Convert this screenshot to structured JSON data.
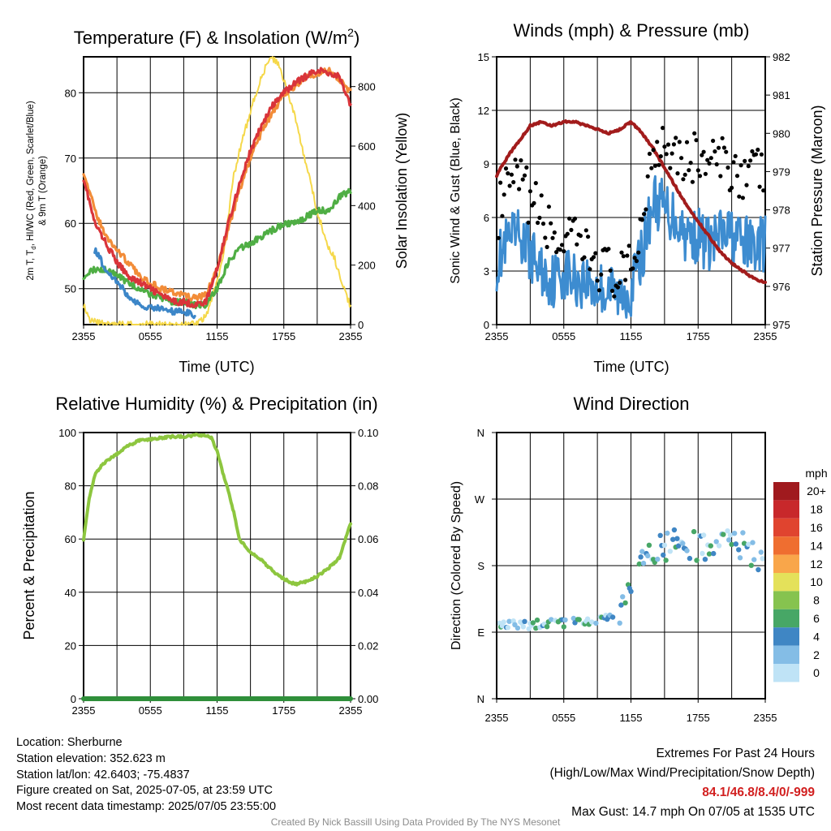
{
  "chart_data": [
    {
      "type": "line",
      "title": "Temperature (F) & Insolation (W/m",
      "title_sup": "2",
      "title_end": ")",
      "xlabel": "Time (UTC)",
      "ylabel_line1": "2m T, T",
      "ylabel_sub": "d",
      "ylabel_line1_end": ", HI/WC (Red, Green, Scarlet/Blue)",
      "ylabel_line2": "& 9m T (Orange)",
      "ylabel_right": "Solar Insolation (Yellow)",
      "x_ticks": [
        "2355",
        "0555",
        "1155",
        "1755",
        "2355"
      ],
      "x_range_hours": [
        0,
        24
      ],
      "ylim": [
        44.5,
        85.5
      ],
      "y_ticks": [
        50,
        60,
        70,
        80
      ],
      "y2lim": [
        0,
        900
      ],
      "y2_ticks": [
        0,
        200,
        400,
        600,
        800
      ],
      "grid": true,
      "series": [
        {
          "color": "#d9343a",
          "x": [
            0,
            1,
            2,
            3,
            4,
            5,
            6,
            7,
            8,
            9,
            10,
            11,
            12,
            13,
            14,
            15,
            16,
            17,
            18,
            19,
            20,
            21,
            22,
            23,
            24
          ],
          "values": [
            67,
            60,
            57,
            54,
            52,
            51,
            50,
            49,
            48,
            48,
            47.5,
            48,
            53,
            60,
            66,
            71,
            75,
            78,
            80,
            81.5,
            82.5,
            83.5,
            83,
            82.5,
            78
          ]
        },
        {
          "color": "#f28c38",
          "x": [
            0,
            1,
            2,
            3,
            4,
            5,
            6,
            7,
            8,
            9,
            10,
            11,
            12,
            13,
            14,
            15,
            16,
            17,
            18,
            19,
            20,
            21,
            22,
            23,
            24
          ],
          "values": [
            68,
            62,
            58,
            56,
            54,
            52,
            51,
            50,
            49.5,
            49,
            48.5,
            49,
            53,
            59,
            65,
            70,
            74,
            77,
            79.5,
            81,
            82.5,
            83,
            83.5,
            82,
            80
          ]
        },
        {
          "color": "#4fae44",
          "x": [
            0,
            1,
            2,
            3,
            4,
            5,
            6,
            7,
            8,
            9,
            10,
            11,
            12,
            13,
            14,
            15,
            16,
            17,
            18,
            19,
            20,
            21,
            22,
            23,
            24
          ],
          "values": [
            52,
            53,
            53,
            52,
            51,
            50,
            49,
            48.5,
            48,
            48,
            47.5,
            47.5,
            50,
            54,
            56,
            57,
            58,
            59,
            60,
            60,
            61,
            62,
            62,
            64,
            65
          ]
        },
        {
          "color": "#3c86c8",
          "x": [
            1,
            2,
            3,
            4,
            5,
            6,
            7,
            8,
            9,
            10
          ],
          "values": [
            56,
            53,
            51,
            49,
            47.5,
            47,
            47,
            46.5,
            46.5,
            46
          ]
        },
        {
          "color": "#f5d84a",
          "axis": "y2",
          "x": [
            0,
            0.5,
            1,
            2,
            4,
            6,
            8,
            10,
            11,
            12,
            12.5,
            13,
            13.5,
            14,
            15,
            16,
            16.5,
            17,
            17.5,
            18,
            19,
            20,
            21,
            22,
            22.5,
            23,
            23.5,
            24
          ],
          "values": [
            70,
            20,
            10,
            0,
            0,
            0,
            0,
            0,
            30,
            140,
            220,
            360,
            500,
            580,
            720,
            830,
            880,
            895,
            880,
            820,
            700,
            540,
            380,
            260,
            230,
            170,
            110,
            60
          ]
        }
      ]
    },
    {
      "type": "scatter",
      "title": "Winds (mph) & Pressure (mb)",
      "xlabel": "Time (UTC)",
      "ylabel": "Sonic Wind & Gust (Blue, Black)",
      "ylabel_right": "Station Pressure (Maroon)",
      "x_ticks": [
        "2355",
        "0555",
        "1155",
        "1755",
        "2355"
      ],
      "x_range_hours": [
        0,
        24
      ],
      "ylim": [
        0,
        15
      ],
      "y_ticks": [
        0,
        3,
        6,
        9,
        12,
        15
      ],
      "y2lim": [
        975,
        982
      ],
      "y2_ticks": [
        975,
        976,
        977,
        978,
        979,
        980,
        981,
        982
      ],
      "grid": true,
      "wind_trend": {
        "color": "#3d8cd0",
        "x": [
          0,
          1,
          2,
          3,
          4,
          5,
          6,
          7,
          8,
          9,
          10,
          11,
          12,
          13,
          14,
          15,
          16,
          17,
          18,
          19,
          20,
          21,
          22,
          23,
          24
        ],
        "values": [
          3.5,
          4.5,
          5,
          4,
          3,
          2.5,
          3,
          2.5,
          2.5,
          2,
          2,
          1.5,
          2,
          4,
          7,
          6.5,
          6,
          5,
          5,
          4.5,
          5,
          5,
          4.5,
          4.5,
          4.5
        ]
      },
      "gust_trend": {
        "color": "#000000",
        "x": [
          0,
          1,
          2,
          3,
          4,
          5,
          6,
          7,
          8,
          9,
          10,
          11,
          12,
          13,
          14,
          15,
          16,
          17,
          18,
          19,
          20,
          21,
          22,
          23,
          24
        ],
        "values": [
          6,
          7.5,
          8,
          7,
          6,
          5,
          4.5,
          4.5,
          4,
          3.5,
          3,
          2.5,
          3,
          6,
          10,
          10.5,
          10,
          9,
          9.5,
          9,
          9,
          9,
          8.5,
          8.5,
          8.5
        ]
      },
      "pressure": {
        "color": "#a21c1c",
        "x": [
          0,
          1,
          2,
          3,
          4,
          5,
          6,
          7,
          8,
          9,
          10,
          11,
          12,
          13,
          14,
          15,
          16,
          17,
          18,
          19,
          20,
          21,
          22,
          23,
          24
        ],
        "values": [
          978.9,
          979.4,
          979.8,
          980.2,
          980.3,
          980.2,
          980.3,
          980.3,
          980.2,
          980.1,
          980.0,
          980.1,
          980.3,
          980.0,
          979.6,
          979.1,
          978.6,
          978.1,
          977.7,
          977.3,
          976.9,
          976.6,
          976.4,
          976.2,
          976.1
        ]
      }
    },
    {
      "type": "line",
      "title": "Relative Humidity (%) & Precipitation (in)",
      "ylabel": "Percent & Precipitation",
      "x_ticks": [
        "2355",
        "0555",
        "1155",
        "1755",
        "2355"
      ],
      "x_range_hours": [
        0,
        24
      ],
      "ylim": [
        0,
        100
      ],
      "y_ticks": [
        0,
        20,
        40,
        60,
        80,
        100
      ],
      "y2lim": [
        0,
        0.1
      ],
      "y2_ticks": [
        "0.00",
        "0.02",
        "0.04",
        "0.06",
        "0.08",
        "0.10"
      ],
      "grid": true,
      "series": [
        {
          "color": "#8dc63f",
          "x": [
            0,
            0.5,
            1,
            1.5,
            2,
            3,
            4,
            5,
            6,
            7,
            8,
            9,
            10,
            11,
            11.5,
            12,
            12.5,
            13,
            13.5,
            14,
            15,
            16,
            17,
            18,
            19,
            20,
            21,
            22,
            23,
            24
          ],
          "values": [
            60,
            75,
            84,
            87,
            89,
            92,
            95,
            97,
            97.5,
            98,
            98.5,
            98.5,
            99,
            99,
            98,
            93,
            85,
            78,
            70,
            60,
            55,
            52,
            48,
            45,
            43,
            44,
            46,
            49,
            53,
            66
          ]
        },
        {
          "color": "#2f8f3a",
          "x": [
            0,
            24
          ],
          "values": [
            0,
            0
          ]
        }
      ]
    },
    {
      "type": "scatter",
      "title": "Wind Direction",
      "ylabel": "Direction (Colored By Speed)",
      "x_ticks": [
        "2355",
        "0555",
        "1155",
        "1755",
        "2355"
      ],
      "x_range_hours": [
        0,
        24
      ],
      "y_ticks": [
        "N",
        "E",
        "S",
        "W",
        "N"
      ],
      "ylim_degrees": [
        0,
        360
      ],
      "grid": true,
      "direction_trend": {
        "x": [
          0,
          1,
          2,
          3,
          4,
          5,
          6,
          7,
          8,
          9,
          10,
          11,
          12,
          13,
          14,
          15,
          16,
          17,
          18,
          19,
          20,
          21,
          22,
          23,
          24
        ],
        "values": [
          98,
          99,
          100,
          100,
          102,
          101,
          103,
          104,
          106,
          108,
          110,
          115,
          150,
          190,
          200,
          205,
          212,
          210,
          205,
          200,
          206,
          212,
          205,
          195,
          170
        ]
      },
      "legend": {
        "title": "mph",
        "labels": [
          "20+",
          "18",
          "16",
          "14",
          "12",
          "10",
          "8",
          "6",
          "4",
          "2",
          "0"
        ],
        "colors": [
          "#a01a1e",
          "#c8282b",
          "#e0442f",
          "#ef6e30",
          "#f9a64a",
          "#e4e15a",
          "#86c34f",
          "#47a766",
          "#3f86c4",
          "#84bde6",
          "#bfe3f6"
        ]
      }
    }
  ],
  "info_left": {
    "location": "Location: Sherburne",
    "elevation": "Station elevation: 352.623 m",
    "latlon": "Station lat/lon: 42.6403; -75.4837",
    "created": "Figure created on Sat, 2025-07-05, at 23:59 UTC",
    "recent": "Most recent data timestamp: 2025/07/05 23:55:00"
  },
  "info_right": {
    "extremes_title": "Extremes For Past 24 Hours",
    "extremes_labels": "(High/Low/Max Wind/Precipitation/Snow Depth)",
    "extremes_values": "84.1/46.8/8.4/0/-999",
    "max_gust": "Max Gust: 14.7 mph On 07/05 at 1535 UTC"
  },
  "credit": "Created By Nick Bassill Using Data Provided By The NYS Mesonet"
}
